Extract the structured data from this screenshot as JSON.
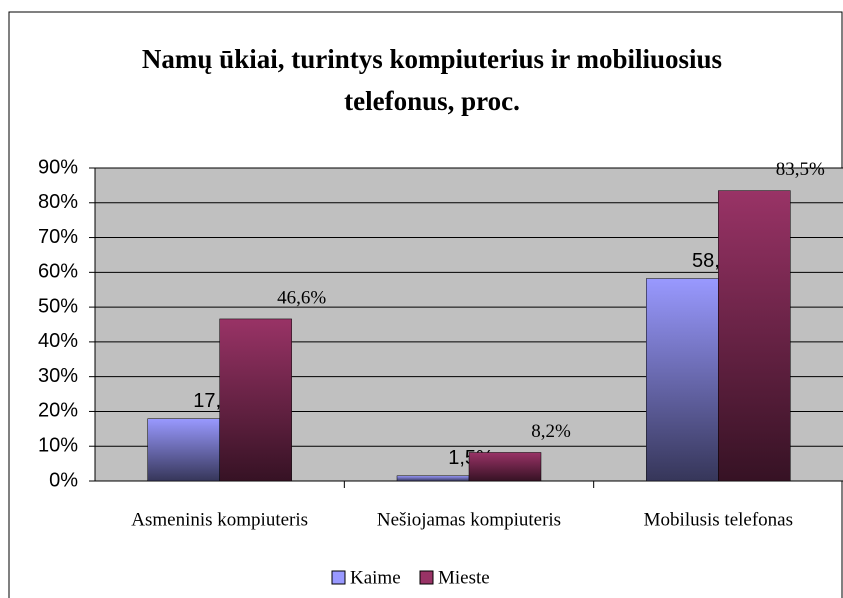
{
  "chart_data": {
    "type": "bar",
    "title": "Namų ūkiai, turintys kompiuterius ir mobiliuosius telefonus, proc.",
    "title_lines": [
      "Namų ūkiai, turintys kompiuterius ir mobiliuosius",
      "telefonus, proc."
    ],
    "categories": [
      "Asmeninis kompiuteris",
      "Nešiojamas kompiuteris",
      "Mobilusis telefonas"
    ],
    "series": [
      {
        "name": "Kaime",
        "color": "#9999ff",
        "values": [
          17.9,
          1.5,
          58.2
        ],
        "value_labels": [
          "17,9%",
          "1,5%",
          "58,2%"
        ]
      },
      {
        "name": "Mieste",
        "color": "#993366",
        "values": [
          46.6,
          8.2,
          83.5
        ],
        "value_labels": [
          "46,6%",
          "8,2%",
          "83,5%"
        ]
      }
    ],
    "ylim": [
      0,
      90
    ],
    "yticks": [
      {
        "value": 0,
        "label": "0%"
      },
      {
        "value": 10,
        "label": "10%"
      },
      {
        "value": 20,
        "label": "20%"
      },
      {
        "value": 30,
        "label": "30%"
      },
      {
        "value": 40,
        "label": "40%"
      },
      {
        "value": 50,
        "label": "50%"
      },
      {
        "value": 60,
        "label": "60%"
      },
      {
        "value": 70,
        "label": "70%"
      },
      {
        "value": 80,
        "label": "80%"
      },
      {
        "value": 90,
        "label": "90%"
      }
    ],
    "grid": true,
    "legend": "bottom"
  }
}
